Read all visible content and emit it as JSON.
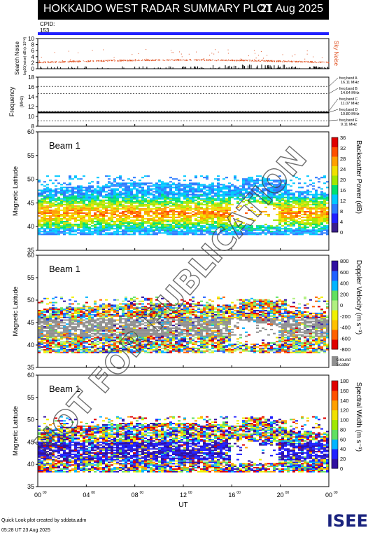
{
  "header": {
    "title": "HOKKAIDO WEST RADAR SUMMARY PLOT",
    "date": "21 Aug 2025"
  },
  "cpid": {
    "label": "CPID:",
    "value": "153"
  },
  "noise_panel": {
    "ylabel_main": "Search Noise",
    "ylabel_sub": "log10(noise) dB (x 10^4)",
    "right_label": "Sky Noise",
    "ticks": [
      "10",
      "8",
      "6",
      "4",
      "2",
      "0"
    ]
  },
  "freq_panel": {
    "ylabel": "Frequency",
    "unit": "(MHz)",
    "ticks": [
      "18",
      "16",
      "14",
      "12",
      "10",
      "8"
    ],
    "bands": [
      {
        "label": "freq band A",
        "value": "16.11 MHz"
      },
      {
        "label": "freq band B",
        "value": "14.64 MHz"
      },
      {
        "label": "freq band C",
        "value": "11.07 MHz"
      },
      {
        "label": "freq band D",
        "value": "10.80 MHz"
      },
      {
        "label": "freq band E",
        "value": "9.11 MHz"
      }
    ]
  },
  "panels": [
    {
      "beam": "Beam 1",
      "ylabel": "Magnetic Latitude",
      "cbar_label": "Backscatter Power (dB)",
      "cbar_ticks": [
        "36",
        "32",
        "28",
        "24",
        "20",
        "16",
        "12",
        "8",
        "4",
        "0"
      ]
    },
    {
      "beam": "Beam 1",
      "ylabel": "Magnetic Latitude",
      "cbar_label": "Doppler Velocity (m s⁻¹)",
      "cbar_ticks": [
        "800",
        "600",
        "400",
        "200",
        "0",
        "-200",
        "-400",
        "-600",
        "-800"
      ],
      "gs_label1": "Ground",
      "gs_label2": "Scatter"
    },
    {
      "beam": "Beam 1",
      "ylabel": "Magnetic Latitude",
      "cbar_label": "Spectral Width (m s⁻¹)",
      "cbar_ticks": [
        "180",
        "160",
        "140",
        "120",
        "100",
        "80",
        "60",
        "40",
        "20",
        "0"
      ]
    }
  ],
  "yticks": [
    "60",
    "55",
    "50",
    "45",
    "40",
    "35"
  ],
  "xaxis": {
    "label": "UT",
    "ticks": [
      "00",
      "04",
      "08",
      "12",
      "16",
      "20",
      "00"
    ],
    "tick_sup": "00"
  },
  "watermark": "NOT FOR PUBLICATION",
  "footer": {
    "line1": "Quick Look plot created by sddata.adm",
    "line2": "05:28 UT 23 Aug 2025"
  },
  "logo": "ISEE",
  "colors": {
    "power_scale": [
      "#3a1e8c",
      "#2020ff",
      "#2a7aff",
      "#00c8ff",
      "#00e070",
      "#a0e800",
      "#f0e000",
      "#ffa000",
      "#ff5000",
      "#e00000"
    ],
    "velocity_scale": [
      "#e00000",
      "#ff6000",
      "#ffc000",
      "#f0f000",
      "#b0f080",
      "#60e060",
      "#00b4ff",
      "#2060ff",
      "#3010a0"
    ],
    "ground_scatter": "#909090",
    "noise_line": "#e05020",
    "band_marker": "#000000"
  },
  "chart_data": {
    "type": "heatmap",
    "x_range_hours": [
      0,
      24
    ],
    "y_range_mlat": [
      35,
      60
    ],
    "noise_ylim": [
      0,
      10
    ],
    "freq_ylim": [
      8,
      18
    ],
    "freq_bands_mhz": [
      16.11,
      14.64,
      11.07,
      10.8,
      9.11
    ],
    "operating_frequency_mhz": 10.8,
    "panels": [
      "Backscatter Power (dB)",
      "Doppler Velocity (m s⁻¹)",
      "Spectral Width (m s⁻¹)"
    ],
    "power_range_db": [
      0,
      36
    ],
    "velocity_range": [
      -800,
      800
    ],
    "width_range": [
      0,
      180
    ],
    "scatter_band_mlat": [
      38.5,
      51
    ]
  }
}
